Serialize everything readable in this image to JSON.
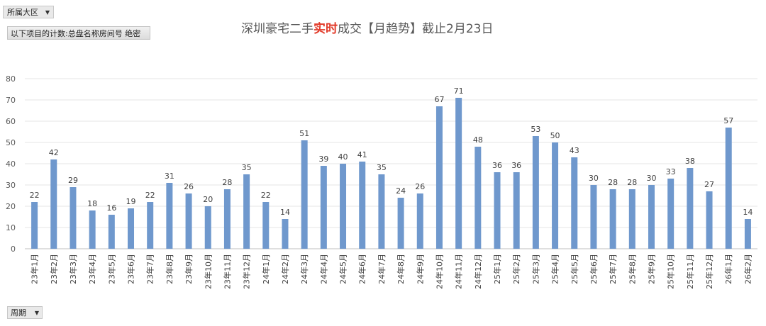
{
  "filters": {
    "region_label": "所属大区",
    "count_label": "以下项目的计数:总盘名称房间号 绝密",
    "period_label": "周期"
  },
  "title": {
    "prefix": "深圳豪宅二手",
    "highlight": "实时",
    "suffix": "成交【月趋势】截止2月23日"
  },
  "colors": {
    "bar": "#6f98cd",
    "title_highlight": "#e23b2a"
  },
  "chart_data": {
    "type": "bar",
    "categories": [
      "23年1月",
      "23年2月",
      "23年3月",
      "23年4月",
      "23年5月",
      "23年6月",
      "23年7月",
      "23年8月",
      "23年9月",
      "23年10月",
      "23年11月",
      "23年12月",
      "24年1月",
      "24年2月",
      "24年3月",
      "24年4月",
      "24年5月",
      "24年6月",
      "24年7月",
      "24年8月",
      "24年9月",
      "24年10月",
      "24年11月",
      "24年12月",
      "25年1月",
      "25年2月",
      "25年3月",
      "25年4月",
      "25年5月",
      "25年6月",
      "25年7月",
      "25年8月",
      "25年9月",
      "25年10月",
      "25年11月",
      "25年12月",
      "26年1月",
      "26年2月"
    ],
    "values": [
      22,
      42,
      29,
      18,
      16,
      19,
      22,
      31,
      26,
      20,
      28,
      35,
      22,
      14,
      51,
      39,
      40,
      41,
      35,
      24,
      26,
      67,
      71,
      48,
      36,
      36,
      53,
      50,
      43,
      30,
      28,
      28,
      30,
      33,
      38,
      27,
      57,
      14
    ],
    "ylim": [
      0,
      80
    ],
    "yticks": [
      0,
      10,
      20,
      30,
      40,
      50,
      60,
      70,
      80
    ],
    "grid": true,
    "title": "深圳豪宅二手实时成交【月趋势】截止2月23日"
  }
}
